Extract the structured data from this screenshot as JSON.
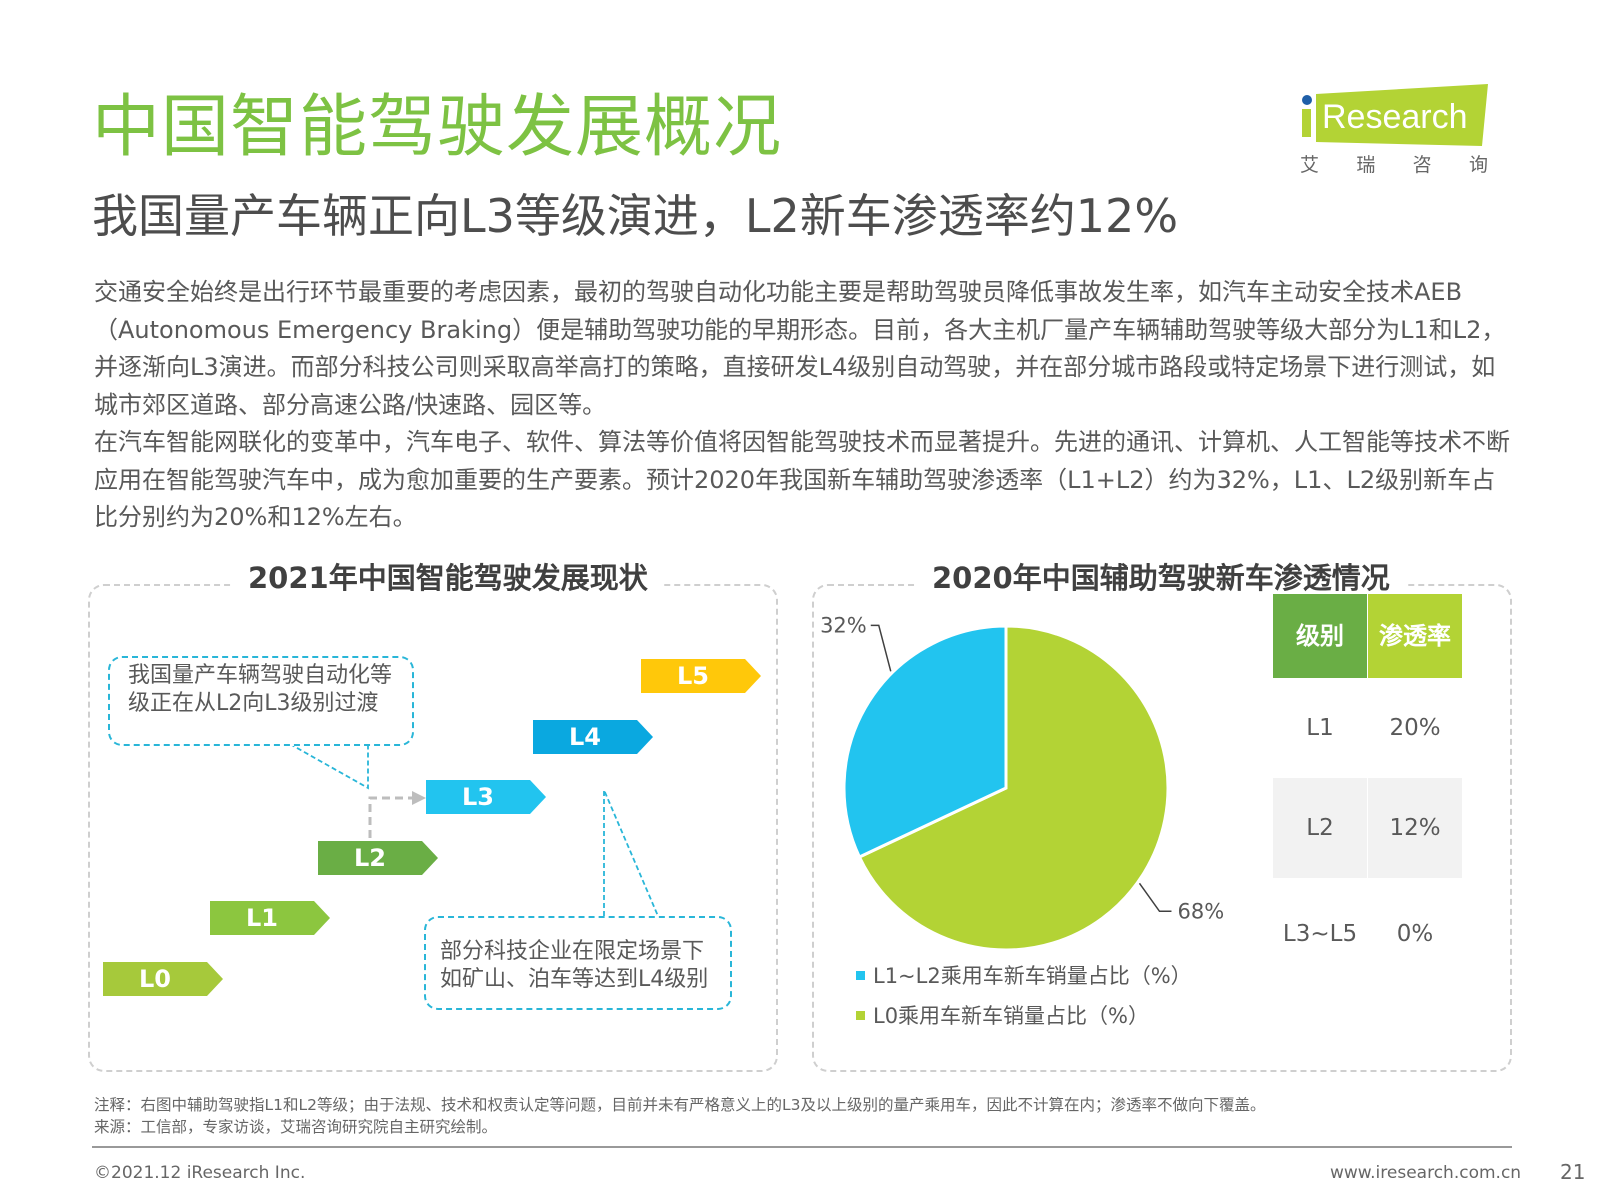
{
  "header": {
    "title": "中国智能驾驶发展概况",
    "subtitle": "我国量产车辆正向L3等级演进，L2新车渗透率约12%",
    "logo": {
      "brand": "Research",
      "brand_prefix": "i",
      "cn_chars": [
        "艾",
        "瑞",
        "咨",
        "询"
      ]
    }
  },
  "body": {
    "paragraphs": [
      "交通安全始终是出行环节最重要的考虑因素，最初的驾驶自动化功能主要是帮助驾驶员降低事故发生率，如汽车主动安全技术AEB（Autonomous Emergency Braking）便是辅助驾驶功能的早期形态。目前，各大主机厂量产车辆辅助驾驶等级大部分为L1和L2，并逐渐向L3演进。而部分科技公司则采取高举高打的策略，直接研发L4级别自动驾驶，并在部分城市路段或特定场景下进行测试，如城市郊区道路、部分高速公路/快速路、园区等。",
      "在汽车智能网联化的变革中，汽车电子、软件、算法等价值将因智能驾驶技术而显著提升。先进的通讯、计算机、人工智能等技术不断应用在智能驾驶汽车中，成为愈加重要的生产要素。预计2020年我国新车辅助驾驶渗透率（L1+L2）约为32%，L1、L2级别新车占比分别约为20%和12%左右。"
    ]
  },
  "left_panel": {
    "title": "2021年中国智能驾驶发展现状",
    "levels": [
      {
        "label": "L0",
        "color": "#a6c93b"
      },
      {
        "label": "L1",
        "color": "#8cc63f"
      },
      {
        "label": "L2",
        "color": "#6aae45"
      },
      {
        "label": "L3",
        "color": "#22c4ef"
      },
      {
        "label": "L4",
        "color": "#0aa8e0"
      },
      {
        "label": "L5",
        "color": "#ffc80a"
      }
    ],
    "callout_top": "我国量产车辆驾驶自动化等级正在从L2向L3级别过渡",
    "callout_bottom": "部分科技企业在限定场景下如矿山、泊车等达到L4级别"
  },
  "right_panel": {
    "title": "2020年中国辅助驾驶新车渗透情况",
    "table": {
      "headers": [
        "级别",
        "渗透率"
      ],
      "header_colors": [
        "#6aae45",
        "#b3d335"
      ],
      "rows": [
        {
          "level": "L1",
          "rate": "20%"
        },
        {
          "level": "L2",
          "rate": "12%"
        },
        {
          "level": "L3~L5",
          "rate": "0%"
        }
      ]
    }
  },
  "chart_data": {
    "type": "pie",
    "title": "2020年中国辅助驾驶新车渗透情况",
    "slices": [
      {
        "name": "L1~L2乘用车新车销量占比（%）",
        "value": 32,
        "label": "32%",
        "color": "#22c4ef"
      },
      {
        "name": "L0乘用车新车销量占比（%）",
        "value": 68,
        "label": "68%",
        "color": "#b3d335"
      }
    ],
    "legend_position": "bottom-left"
  },
  "footer": {
    "note": "注释：右图中辅助驾驶指L1和L2等级；由于法规、技术和权责认定等问题，目前并未有严格意义上的L3及以上级别的量产乘用车，因此不计算在内；渗透率不做向下覆盖。",
    "source": "来源：工信部，专家访谈，艾瑞咨询研究院自主研究绘制。",
    "copyright": "©2021.12 iResearch Inc.",
    "website": "www.iresearch.com.cn",
    "page_number": "21"
  }
}
